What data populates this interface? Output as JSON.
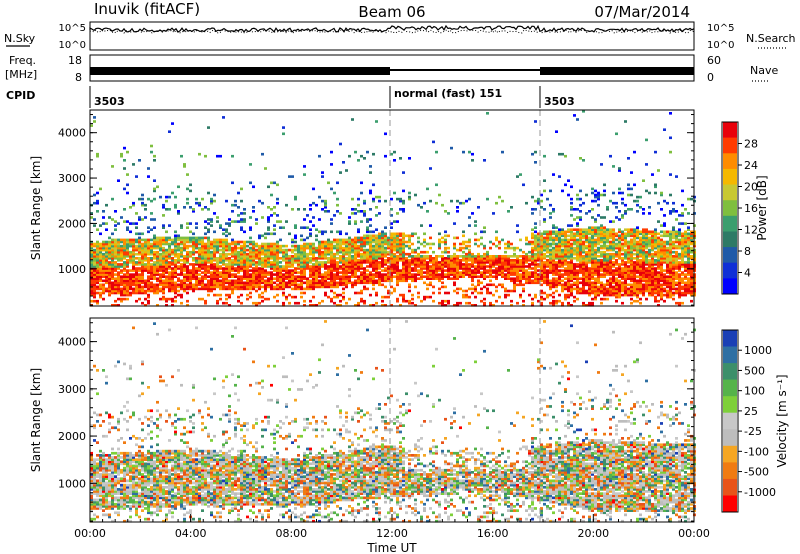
{
  "header": {
    "station": "Inuvik (fitACF)",
    "beam": "Beam 06",
    "date": "07/Mar/2014"
  },
  "top_panels": {
    "nsky_label": "N.Sky",
    "nsky_ticks_left": [
      "10^5",
      "10^0"
    ],
    "nsearch_label": "N.Search",
    "nsearch_ticks_right": [
      "10^5",
      "10^0"
    ],
    "freq_label": "Freq.",
    "freq_unit": "[MHz]",
    "freq_ticks": [
      "18",
      "8"
    ],
    "nave_label": "Nave",
    "nave_ticks": [
      "60",
      "0"
    ],
    "cpid_label": "CPID",
    "cpid_segments": [
      {
        "label": "3503",
        "start_hour": 0
      },
      {
        "label": "normal (fast) 151",
        "start_hour": 12
      },
      {
        "label": "3503",
        "start_hour": 18
      }
    ]
  },
  "power_colorbar": {
    "label": "Power [dB]",
    "ticks": [
      "28",
      "24",
      "20",
      "16",
      "12",
      "8",
      "4"
    ],
    "colors": [
      "#e8000a",
      "#ff3b00",
      "#ff8c00",
      "#f5b800",
      "#c8c832",
      "#7fbf3f",
      "#3b9e6e",
      "#2d7a66",
      "#1f5aa8",
      "#0f2fd6",
      "#0000ff"
    ]
  },
  "velocity_colorbar": {
    "label": "Velocity [m s⁻¹]",
    "ticks": [
      "1000",
      "500",
      "100",
      "25",
      "-25",
      "-100",
      "-500",
      "-1000"
    ],
    "colors": [
      "#1a3fb5",
      "#2e6fa3",
      "#3c8f6a",
      "#55b34a",
      "#7ed03a",
      "#c8c8c8",
      "#bdbdbd",
      "#f5a623",
      "#f07b12",
      "#e8541a",
      "#ff0000"
    ]
  },
  "chart_data": [
    {
      "type": "heatmap",
      "title": "",
      "variable": "Power",
      "xlabel": "",
      "ylabel": "Slant Range [km]",
      "xlim": [
        0,
        24
      ],
      "ylim": [
        180,
        4500
      ],
      "yticks": [
        1000,
        2000,
        3000,
        4000
      ],
      "scatter_band_km": [
        {
          "hour": 0,
          "low": 400,
          "high": 1600
        },
        {
          "hour": 4,
          "low": 500,
          "high": 1700
        },
        {
          "hour": 8,
          "low": 500,
          "high": 1500
        },
        {
          "hour": 12,
          "low": 700,
          "high": 1800
        },
        {
          "hour": 16,
          "low": 800,
          "high": 1700
        },
        {
          "hour": 20,
          "low": 400,
          "high": 1900
        },
        {
          "hour": 24,
          "low": 400,
          "high": 1800
        }
      ]
    },
    {
      "type": "heatmap",
      "title": "",
      "variable": "Velocity",
      "xlabel": "Time UT",
      "ylabel": "Slant Range [km]",
      "xlim": [
        0,
        24
      ],
      "ylim": [
        180,
        4500
      ],
      "yticks": [
        1000,
        2000,
        3000,
        4000
      ],
      "xticks": [
        "00:00",
        "04:00",
        "08:00",
        "12:00",
        "16:00",
        "20:00",
        "00:00"
      ]
    }
  ]
}
